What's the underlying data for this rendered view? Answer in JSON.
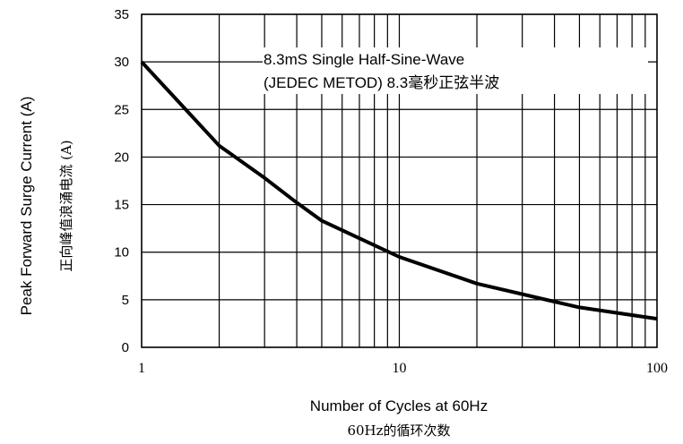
{
  "chart_data": {
    "type": "line",
    "title": "",
    "annotation": {
      "line1": "8.3mS Single Half-Sine-Wave",
      "line2": "(JEDEC METOD)  8.3毫秒正弦半波"
    },
    "xlabel": "Number of Cycles at 60Hz",
    "xlabel_cn": "60Hz的循环次数",
    "ylabel": "Peak Forward Surge Current (A)",
    "ylabel_cn": "正向峰值浪涌电流  (A)",
    "x_scale": "log",
    "xlim": [
      1,
      100
    ],
    "ylim": [
      0,
      35
    ],
    "x_ticks": [
      1,
      10,
      100
    ],
    "x_tick_labels": [
      "1",
      "10",
      "100"
    ],
    "y_ticks": [
      0,
      5,
      10,
      15,
      20,
      25,
      30,
      35
    ],
    "y_tick_labels": [
      "0",
      "5",
      "10",
      "15",
      "20",
      "25",
      "30",
      "35"
    ],
    "grid": true,
    "x": [
      1,
      2,
      3,
      4,
      5,
      10,
      20,
      40,
      50,
      100
    ],
    "y": [
      30,
      21.2,
      17.8,
      15.2,
      13.3,
      9.5,
      6.7,
      4.8,
      4.2,
      3.0
    ]
  }
}
